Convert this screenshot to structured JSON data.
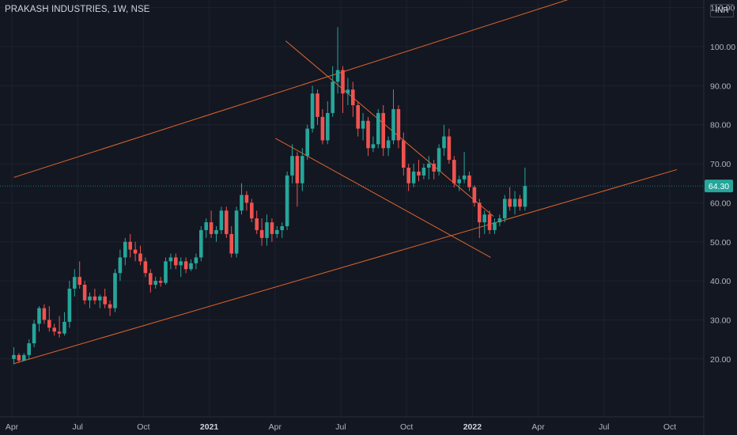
{
  "header": {
    "title": "PRAKASH INDUSTRIES, 1W, NSE",
    "currency": "INR"
  },
  "chart_data": {
    "type": "candlestick",
    "title": "PRAKASH INDUSTRIES, 1W, NSE",
    "currency": "INR",
    "ylim": [
      14.5,
      119
    ],
    "y_ticks": [
      "110.00",
      "100.00",
      "90.00",
      "80.00",
      "70.00",
      "60.00",
      "50.00",
      "40.00",
      "30.00",
      "20.00"
    ],
    "x_ticks": [
      "Apr",
      "Jul",
      "Oct",
      "2021",
      "Apr",
      "Jul",
      "Oct",
      "2022",
      "Apr",
      "Jul",
      "Oct"
    ],
    "x_tick_weeks": [
      0,
      13,
      26,
      39,
      52,
      65,
      78,
      91,
      104,
      117,
      130
    ],
    "last_price": "64.30",
    "colors": {
      "up": "#26a69a",
      "down": "#ef5350",
      "trendline": "#e0652c",
      "background": "#131722",
      "grid": "#1e222d",
      "axis_text": "#b2b5be",
      "price_label": "#26a69a"
    },
    "candles": [
      {
        "o": 20,
        "h": 23,
        "l": 18.6,
        "c": 21
      },
      {
        "o": 21,
        "h": 21.5,
        "l": 19,
        "c": 19.6
      },
      {
        "o": 19.6,
        "h": 21.5,
        "l": 19.4,
        "c": 21
      },
      {
        "o": 21,
        "h": 25,
        "l": 20,
        "c": 24
      },
      {
        "o": 24,
        "h": 30,
        "l": 23,
        "c": 29
      },
      {
        "o": 29,
        "h": 33.5,
        "l": 27,
        "c": 33
      },
      {
        "o": 33,
        "h": 34,
        "l": 29,
        "c": 30
      },
      {
        "o": 30,
        "h": 33.5,
        "l": 27,
        "c": 28
      },
      {
        "o": 28,
        "h": 29,
        "l": 26,
        "c": 27
      },
      {
        "o": 27,
        "h": 31,
        "l": 25.5,
        "c": 26.5
      },
      {
        "o": 26.5,
        "h": 32,
        "l": 26,
        "c": 29.5
      },
      {
        "o": 29.5,
        "h": 40,
        "l": 28,
        "c": 38
      },
      {
        "o": 38,
        "h": 43,
        "l": 36,
        "c": 41
      },
      {
        "o": 41,
        "h": 45,
        "l": 38,
        "c": 39
      },
      {
        "o": 39,
        "h": 40,
        "l": 34,
        "c": 35
      },
      {
        "o": 35,
        "h": 37,
        "l": 33,
        "c": 36
      },
      {
        "o": 36,
        "h": 38,
        "l": 34,
        "c": 35
      },
      {
        "o": 35,
        "h": 36.5,
        "l": 33,
        "c": 36
      },
      {
        "o": 36,
        "h": 38,
        "l": 33,
        "c": 34
      },
      {
        "o": 34,
        "h": 35,
        "l": 31,
        "c": 33
      },
      {
        "o": 33,
        "h": 43,
        "l": 32,
        "c": 42
      },
      {
        "o": 42,
        "h": 48,
        "l": 40,
        "c": 46
      },
      {
        "o": 46,
        "h": 51,
        "l": 44,
        "c": 50
      },
      {
        "o": 50,
        "h": 52,
        "l": 46,
        "c": 48
      },
      {
        "o": 48,
        "h": 50,
        "l": 45,
        "c": 47
      },
      {
        "o": 47,
        "h": 49,
        "l": 44,
        "c": 45
      },
      {
        "o": 45,
        "h": 46,
        "l": 41,
        "c": 42
      },
      {
        "o": 42,
        "h": 43,
        "l": 37,
        "c": 39
      },
      {
        "o": 39,
        "h": 41,
        "l": 38,
        "c": 40
      },
      {
        "o": 40,
        "h": 41,
        "l": 38.5,
        "c": 39.5
      },
      {
        "o": 39.5,
        "h": 46,
        "l": 39,
        "c": 45
      },
      {
        "o": 45,
        "h": 47,
        "l": 43,
        "c": 46
      },
      {
        "o": 46,
        "h": 47,
        "l": 43,
        "c": 44
      },
      {
        "o": 44,
        "h": 46,
        "l": 41,
        "c": 45
      },
      {
        "o": 45,
        "h": 46,
        "l": 42,
        "c": 43
      },
      {
        "o": 43,
        "h": 45.5,
        "l": 42.5,
        "c": 44.5
      },
      {
        "o": 44.5,
        "h": 47,
        "l": 43,
        "c": 46
      },
      {
        "o": 46,
        "h": 54,
        "l": 45,
        "c": 53
      },
      {
        "o": 53,
        "h": 56,
        "l": 51,
        "c": 55
      },
      {
        "o": 55,
        "h": 58,
        "l": 51,
        "c": 52
      },
      {
        "o": 52,
        "h": 54,
        "l": 50,
        "c": 53
      },
      {
        "o": 53,
        "h": 59,
        "l": 52,
        "c": 58
      },
      {
        "o": 58,
        "h": 59,
        "l": 51,
        "c": 52
      },
      {
        "o": 52,
        "h": 54,
        "l": 46,
        "c": 47
      },
      {
        "o": 47,
        "h": 59,
        "l": 46,
        "c": 58
      },
      {
        "o": 58,
        "h": 65,
        "l": 57,
        "c": 62
      },
      {
        "o": 62,
        "h": 63,
        "l": 58,
        "c": 60
      },
      {
        "o": 60,
        "h": 61,
        "l": 55,
        "c": 56
      },
      {
        "o": 56,
        "h": 58,
        "l": 52,
        "c": 53
      },
      {
        "o": 53,
        "h": 56,
        "l": 49,
        "c": 51
      },
      {
        "o": 51,
        "h": 57,
        "l": 49,
        "c": 55
      },
      {
        "o": 55,
        "h": 56,
        "l": 50,
        "c": 52
      },
      {
        "o": 52,
        "h": 54,
        "l": 51,
        "c": 53
      },
      {
        "o": 53,
        "h": 55,
        "l": 51,
        "c": 54
      },
      {
        "o": 54,
        "h": 68,
        "l": 53,
        "c": 67
      },
      {
        "o": 67,
        "h": 75,
        "l": 65,
        "c": 72
      },
      {
        "o": 72,
        "h": 73,
        "l": 59,
        "c": 65
      },
      {
        "o": 65,
        "h": 74,
        "l": 63,
        "c": 72
      },
      {
        "o": 72,
        "h": 80,
        "l": 71,
        "c": 79
      },
      {
        "o": 79,
        "h": 90,
        "l": 78,
        "c": 88
      },
      {
        "o": 88,
        "h": 89,
        "l": 80,
        "c": 82
      },
      {
        "o": 82,
        "h": 84,
        "l": 75,
        "c": 76
      },
      {
        "o": 76,
        "h": 86,
        "l": 75,
        "c": 83
      },
      {
        "o": 83,
        "h": 95,
        "l": 82,
        "c": 91
      },
      {
        "o": 91,
        "h": 105,
        "l": 88,
        "c": 94
      },
      {
        "o": 94,
        "h": 95,
        "l": 83,
        "c": 88
      },
      {
        "o": 88,
        "h": 92,
        "l": 85,
        "c": 89
      },
      {
        "o": 89,
        "h": 91,
        "l": 82,
        "c": 85
      },
      {
        "o": 85,
        "h": 86,
        "l": 77,
        "c": 79
      },
      {
        "o": 79,
        "h": 83,
        "l": 76,
        "c": 81
      },
      {
        "o": 81,
        "h": 82,
        "l": 72,
        "c": 74
      },
      {
        "o": 74,
        "h": 77,
        "l": 73,
        "c": 75
      },
      {
        "o": 75,
        "h": 84,
        "l": 74,
        "c": 83
      },
      {
        "o": 83,
        "h": 85,
        "l": 72,
        "c": 74
      },
      {
        "o": 74,
        "h": 77,
        "l": 72,
        "c": 76
      },
      {
        "o": 76,
        "h": 89,
        "l": 75,
        "c": 84
      },
      {
        "o": 84,
        "h": 85,
        "l": 74,
        "c": 76
      },
      {
        "o": 76,
        "h": 78,
        "l": 67,
        "c": 69
      },
      {
        "o": 69,
        "h": 70,
        "l": 63,
        "c": 65
      },
      {
        "o": 65,
        "h": 70,
        "l": 64,
        "c": 68
      },
      {
        "o": 68,
        "h": 71,
        "l": 65.5,
        "c": 67
      },
      {
        "o": 67,
        "h": 70,
        "l": 66,
        "c": 69
      },
      {
        "o": 69,
        "h": 72,
        "l": 66,
        "c": 70
      },
      {
        "o": 70,
        "h": 71,
        "l": 66,
        "c": 68
      },
      {
        "o": 68,
        "h": 75,
        "l": 67,
        "c": 74
      },
      {
        "o": 74,
        "h": 80,
        "l": 72,
        "c": 77
      },
      {
        "o": 77,
        "h": 79,
        "l": 70,
        "c": 71
      },
      {
        "o": 71,
        "h": 72,
        "l": 64,
        "c": 65
      },
      {
        "o": 65,
        "h": 67,
        "l": 63,
        "c": 66
      },
      {
        "o": 66,
        "h": 73,
        "l": 65,
        "c": 67
      },
      {
        "o": 67,
        "h": 68,
        "l": 63,
        "c": 64
      },
      {
        "o": 64,
        "h": 64.5,
        "l": 59,
        "c": 60
      },
      {
        "o": 60,
        "h": 61,
        "l": 51,
        "c": 55
      },
      {
        "o": 55,
        "h": 58,
        "l": 52,
        "c": 57
      },
      {
        "o": 57,
        "h": 58,
        "l": 52,
        "c": 53
      },
      {
        "o": 53,
        "h": 56,
        "l": 52,
        "c": 55
      },
      {
        "o": 55,
        "h": 57,
        "l": 54,
        "c": 56
      },
      {
        "o": 56,
        "h": 62,
        "l": 55,
        "c": 61
      },
      {
        "o": 61,
        "h": 64,
        "l": 58,
        "c": 59
      },
      {
        "o": 59,
        "h": 63,
        "l": 57,
        "c": 61
      },
      {
        "o": 61,
        "h": 62,
        "l": 58,
        "c": 59
      },
      {
        "o": 59,
        "h": 69,
        "l": 58,
        "c": 64.3
      }
    ],
    "trendlines": [
      {
        "name": "upper-channel",
        "from": {
          "week": 0,
          "price": 66.5
        },
        "to": {
          "week": 131,
          "price": 121
        }
      },
      {
        "name": "lower-channel",
        "from": {
          "week": 0,
          "price": 18.8
        },
        "to": {
          "week": 131,
          "price": 68.5
        }
      },
      {
        "name": "wedge-upper",
        "from": {
          "week": 53.7,
          "price": 101.5
        },
        "to": {
          "week": 94.8,
          "price": 56.5
        }
      },
      {
        "name": "wedge-lower",
        "from": {
          "week": 51.7,
          "price": 76.5
        },
        "to": {
          "week": 94.2,
          "price": 46
        }
      }
    ]
  }
}
